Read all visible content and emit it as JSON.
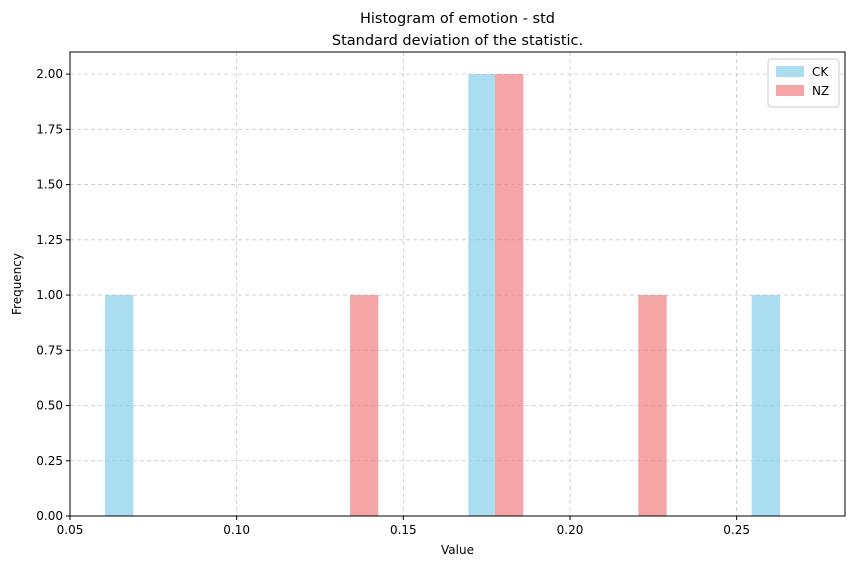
{
  "chart_data": {
    "type": "bar",
    "title": "Histogram of emotion - std",
    "subtitle": "Standard deviation of the statistic.",
    "xlabel": "Value",
    "ylabel": "Frequency",
    "xlim": [
      0.05,
      0.2825
    ],
    "ylim": [
      0,
      2.1
    ],
    "xticks": [
      0.05,
      0.1,
      0.15,
      0.2,
      0.25
    ],
    "xtick_labels": [
      "0.05",
      "0.10",
      "0.15",
      "0.20",
      "0.25"
    ],
    "yticks": [
      0,
      0.25,
      0.5,
      0.75,
      1.0,
      1.25,
      1.5,
      1.75,
      2.0
    ],
    "ytick_labels": [
      "0.00",
      "0.25",
      "0.50",
      "0.75",
      "1.00",
      "1.25",
      "1.50",
      "1.75",
      "2.00"
    ],
    "grid": true,
    "legend_position": "top-right",
    "series": [
      {
        "name": "CK",
        "color": "#87CEEB",
        "bars": [
          {
            "x0": 0.0605,
            "x1": 0.069,
            "count": 1
          },
          {
            "x0": 0.1695,
            "x1": 0.1775,
            "count": 2
          },
          {
            "x0": 0.2545,
            "x1": 0.263,
            "count": 1
          }
        ]
      },
      {
        "name": "NZ",
        "color": "#F08080",
        "bars": [
          {
            "x0": 0.134,
            "x1": 0.1425,
            "count": 1
          },
          {
            "x0": 0.1775,
            "x1": 0.186,
            "count": 2
          },
          {
            "x0": 0.2205,
            "x1": 0.229,
            "count": 1
          }
        ]
      }
    ]
  }
}
